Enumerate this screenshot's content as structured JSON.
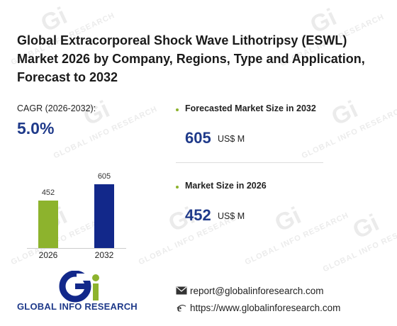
{
  "watermark": {
    "text": "GLOBAL INFO RESEARCH",
    "logo": "Gi"
  },
  "title": "Global Extracorporeal Shock Wave Lithotripsy (ESWL) Market 2026 by Company, Regions, Type and Application, Forecast to 2032",
  "cagr": {
    "label": "CAGR (2026-2032):",
    "value": "5.0%"
  },
  "chart_data": {
    "type": "bar",
    "categories": [
      "2026",
      "2032"
    ],
    "values": [
      452,
      605
    ],
    "value_labels": [
      "452",
      "605"
    ],
    "ylim": [
      0,
      605
    ],
    "colors": [
      "#8db32d",
      "#12288a"
    ]
  },
  "metrics": [
    {
      "label": "Forecasted Market Size in 2032",
      "value": "605",
      "unit": "US$ M"
    },
    {
      "label": "Market Size in 2026",
      "value": "452",
      "unit": "US$ M"
    }
  ],
  "brand": {
    "name": "GLOBAL INFO RESEARCH"
  },
  "contact": {
    "email": "report@globalinforesearch.com",
    "website": "https://www.globalinforesearch.com",
    "email_icon": "envelope-icon",
    "website_icon": "web-icon"
  },
  "colors": {
    "accent": "#1f3a8a",
    "green": "#8db32d",
    "navy": "#12288a"
  }
}
